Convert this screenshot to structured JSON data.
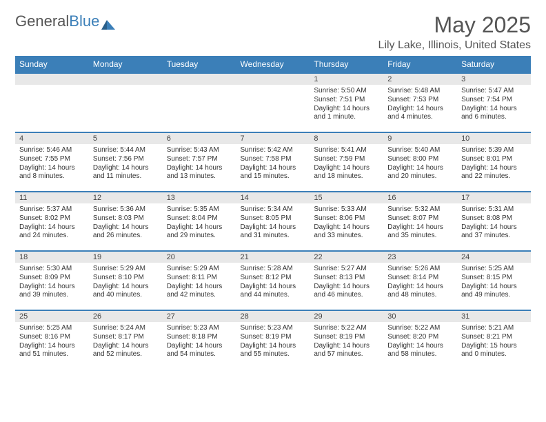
{
  "logo": {
    "text_a": "General",
    "text_b": "Blue"
  },
  "title": "May 2025",
  "location": "Lily Lake, Illinois, United States",
  "colors": {
    "header_bg": "#3b7fb8",
    "header_text": "#ffffff",
    "daynum_bg": "#e8e8e8",
    "row_border": "#3b7fb8",
    "body_text": "#333333",
    "title_text": "#555555"
  },
  "day_headers": [
    "Sunday",
    "Monday",
    "Tuesday",
    "Wednesday",
    "Thursday",
    "Friday",
    "Saturday"
  ],
  "weeks": [
    [
      null,
      null,
      null,
      null,
      {
        "n": "1",
        "sr": "5:50 AM",
        "ss": "7:51 PM",
        "dl": "14 hours and 1 minute."
      },
      {
        "n": "2",
        "sr": "5:48 AM",
        "ss": "7:53 PM",
        "dl": "14 hours and 4 minutes."
      },
      {
        "n": "3",
        "sr": "5:47 AM",
        "ss": "7:54 PM",
        "dl": "14 hours and 6 minutes."
      }
    ],
    [
      {
        "n": "4",
        "sr": "5:46 AM",
        "ss": "7:55 PM",
        "dl": "14 hours and 8 minutes."
      },
      {
        "n": "5",
        "sr": "5:44 AM",
        "ss": "7:56 PM",
        "dl": "14 hours and 11 minutes."
      },
      {
        "n": "6",
        "sr": "5:43 AM",
        "ss": "7:57 PM",
        "dl": "14 hours and 13 minutes."
      },
      {
        "n": "7",
        "sr": "5:42 AM",
        "ss": "7:58 PM",
        "dl": "14 hours and 15 minutes."
      },
      {
        "n": "8",
        "sr": "5:41 AM",
        "ss": "7:59 PM",
        "dl": "14 hours and 18 minutes."
      },
      {
        "n": "9",
        "sr": "5:40 AM",
        "ss": "8:00 PM",
        "dl": "14 hours and 20 minutes."
      },
      {
        "n": "10",
        "sr": "5:39 AM",
        "ss": "8:01 PM",
        "dl": "14 hours and 22 minutes."
      }
    ],
    [
      {
        "n": "11",
        "sr": "5:37 AM",
        "ss": "8:02 PM",
        "dl": "14 hours and 24 minutes."
      },
      {
        "n": "12",
        "sr": "5:36 AM",
        "ss": "8:03 PM",
        "dl": "14 hours and 26 minutes."
      },
      {
        "n": "13",
        "sr": "5:35 AM",
        "ss": "8:04 PM",
        "dl": "14 hours and 29 minutes."
      },
      {
        "n": "14",
        "sr": "5:34 AM",
        "ss": "8:05 PM",
        "dl": "14 hours and 31 minutes."
      },
      {
        "n": "15",
        "sr": "5:33 AM",
        "ss": "8:06 PM",
        "dl": "14 hours and 33 minutes."
      },
      {
        "n": "16",
        "sr": "5:32 AM",
        "ss": "8:07 PM",
        "dl": "14 hours and 35 minutes."
      },
      {
        "n": "17",
        "sr": "5:31 AM",
        "ss": "8:08 PM",
        "dl": "14 hours and 37 minutes."
      }
    ],
    [
      {
        "n": "18",
        "sr": "5:30 AM",
        "ss": "8:09 PM",
        "dl": "14 hours and 39 minutes."
      },
      {
        "n": "19",
        "sr": "5:29 AM",
        "ss": "8:10 PM",
        "dl": "14 hours and 40 minutes."
      },
      {
        "n": "20",
        "sr": "5:29 AM",
        "ss": "8:11 PM",
        "dl": "14 hours and 42 minutes."
      },
      {
        "n": "21",
        "sr": "5:28 AM",
        "ss": "8:12 PM",
        "dl": "14 hours and 44 minutes."
      },
      {
        "n": "22",
        "sr": "5:27 AM",
        "ss": "8:13 PM",
        "dl": "14 hours and 46 minutes."
      },
      {
        "n": "23",
        "sr": "5:26 AM",
        "ss": "8:14 PM",
        "dl": "14 hours and 48 minutes."
      },
      {
        "n": "24",
        "sr": "5:25 AM",
        "ss": "8:15 PM",
        "dl": "14 hours and 49 minutes."
      }
    ],
    [
      {
        "n": "25",
        "sr": "5:25 AM",
        "ss": "8:16 PM",
        "dl": "14 hours and 51 minutes."
      },
      {
        "n": "26",
        "sr": "5:24 AM",
        "ss": "8:17 PM",
        "dl": "14 hours and 52 minutes."
      },
      {
        "n": "27",
        "sr": "5:23 AM",
        "ss": "8:18 PM",
        "dl": "14 hours and 54 minutes."
      },
      {
        "n": "28",
        "sr": "5:23 AM",
        "ss": "8:19 PM",
        "dl": "14 hours and 55 minutes."
      },
      {
        "n": "29",
        "sr": "5:22 AM",
        "ss": "8:19 PM",
        "dl": "14 hours and 57 minutes."
      },
      {
        "n": "30",
        "sr": "5:22 AM",
        "ss": "8:20 PM",
        "dl": "14 hours and 58 minutes."
      },
      {
        "n": "31",
        "sr": "5:21 AM",
        "ss": "8:21 PM",
        "dl": "15 hours and 0 minutes."
      }
    ]
  ],
  "labels": {
    "sunrise": "Sunrise:",
    "sunset": "Sunset:",
    "daylight": "Daylight:"
  }
}
